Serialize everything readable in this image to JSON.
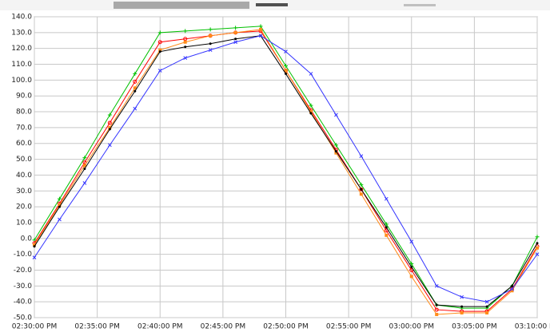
{
  "chart_data": {
    "type": "line",
    "x": [
      "02:30:00 PM",
      "02:32:00 PM",
      "02:34:00 PM",
      "02:36:00 PM",
      "02:38:00 PM",
      "02:40:00 PM",
      "02:42:00 PM",
      "02:44:00 PM",
      "02:46:00 PM",
      "02:48:00 PM",
      "02:50:00 PM",
      "02:52:00 PM",
      "02:54:00 PM",
      "02:56:00 PM",
      "02:58:00 PM",
      "03:00:00 PM",
      "03:02:00 PM",
      "03:04:00 PM",
      "03:06:00 PM",
      "03:08:00 PM",
      "03:10:00 PM"
    ],
    "series": [
      {
        "color": "#00c000",
        "marker": "plus",
        "values": [
          -1,
          25,
          51,
          78,
          104,
          130,
          131,
          132,
          133,
          134,
          109,
          84,
          59,
          34,
          9,
          -16,
          -42,
          -44,
          -44,
          -30,
          1
        ]
      },
      {
        "color": "#ff0000",
        "marker": "circle",
        "values": [
          -3,
          22,
          48,
          73,
          99,
          124,
          126,
          128,
          130,
          131,
          106,
          81,
          56,
          31,
          5,
          -20,
          -45,
          -46,
          -46,
          -32,
          -5
        ]
      },
      {
        "color": "#ff8c1a",
        "marker": "square",
        "values": [
          -4,
          21,
          46,
          70,
          95,
          119,
          124,
          128,
          130,
          132,
          106,
          80,
          54,
          28,
          2,
          -24,
          -48,
          -47,
          -47,
          -33,
          -6
        ]
      },
      {
        "color": "#000000",
        "marker": "dot",
        "values": [
          -5,
          20,
          44,
          69,
          93,
          118,
          121,
          123,
          126,
          128,
          104,
          79,
          55,
          31,
          7,
          -18,
          -42,
          -43,
          -43,
          -30,
          -3
        ]
      },
      {
        "color": "#3333ff",
        "marker": "cross",
        "values": [
          -12,
          12,
          35,
          59,
          82,
          106,
          114,
          119,
          124,
          128,
          118,
          104,
          78,
          52,
          25,
          -2,
          -30,
          -37,
          -40,
          -32,
          -10
        ]
      }
    ],
    "xlim": [
      "02:30:00 PM",
      "03:10:00 PM"
    ],
    "xticks": [
      "02:30:00 PM",
      "02:35:00 PM",
      "02:40:00 PM",
      "02:45:00 PM",
      "02:50:00 PM",
      "02:55:00 PM",
      "03:00:00 PM",
      "03:05:00 PM",
      "03:10:00 PM"
    ],
    "ylim": [
      -50,
      140
    ],
    "yticks": [
      {
        "value": -50,
        "label": "-50.0"
      },
      {
        "value": -40,
        "label": "-40.0"
      },
      {
        "value": -30,
        "label": "-30.0"
      },
      {
        "value": -20,
        "label": "-20.0"
      },
      {
        "value": -10,
        "label": "-10.0"
      },
      {
        "value": 0,
        "label": "0.0"
      },
      {
        "value": 10,
        "label": "10.0"
      },
      {
        "value": 20,
        "label": "20.0"
      },
      {
        "value": 30,
        "label": "30.0"
      },
      {
        "value": 40,
        "label": "40.0"
      },
      {
        "value": 50,
        "label": "50.0"
      },
      {
        "value": 60,
        "label": "60.0"
      },
      {
        "value": 70,
        "label": "70.0"
      },
      {
        "value": 80,
        "label": "80.0"
      },
      {
        "value": 90,
        "label": "90.0"
      },
      {
        "value": 100,
        "label": "100.0"
      },
      {
        "value": 110,
        "label": "110.0"
      },
      {
        "value": 120,
        "label": "120.0"
      },
      {
        "value": 130,
        "label": "130.0"
      },
      {
        "value": 140,
        "label": "140.0"
      }
    ],
    "grid": true
  }
}
